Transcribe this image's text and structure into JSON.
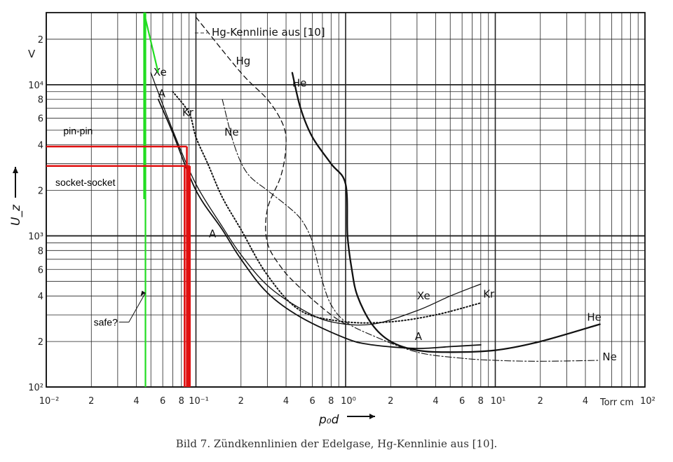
{
  "caption": "Bild 7. Zündkennlinien der Edelgase, Hg-Kennlinie aus [10].",
  "chart_data": {
    "type": "line",
    "xscale": "log",
    "yscale": "log",
    "xlim": [
      0.01,
      100
    ],
    "ylim": [
      100,
      30000
    ],
    "xlabel": "p₀d",
    "xunit": "Torr cm",
    "ylabel": "U_z",
    "yunit": "V",
    "grid": true,
    "header_label": "Hg-Kennlinie aus [10]",
    "x_ticks": [
      {
        "v": 0.01,
        "t": "10⁻²"
      },
      {
        "v": 0.02,
        "t": "2"
      },
      {
        "v": 0.04,
        "t": "4"
      },
      {
        "v": 0.06,
        "t": "6"
      },
      {
        "v": 0.08,
        "t": "8"
      },
      {
        "v": 0.1,
        "t": "10⁻¹"
      },
      {
        "v": 0.2,
        "t": "2"
      },
      {
        "v": 0.4,
        "t": "4"
      },
      {
        "v": 0.6,
        "t": "6"
      },
      {
        "v": 0.8,
        "t": "8"
      },
      {
        "v": 1,
        "t": "10⁰"
      },
      {
        "v": 2,
        "t": "2"
      },
      {
        "v": 4,
        "t": "4"
      },
      {
        "v": 6,
        "t": "6"
      },
      {
        "v": 8,
        "t": "8"
      },
      {
        "v": 10,
        "t": "10¹"
      },
      {
        "v": 20,
        "t": "2"
      },
      {
        "v": 40,
        "t": "4"
      },
      {
        "v": 100,
        "t": "10²"
      }
    ],
    "y_ticks": [
      {
        "v": 100,
        "t": "10²"
      },
      {
        "v": 200,
        "t": "2"
      },
      {
        "v": 400,
        "t": "4"
      },
      {
        "v": 600,
        "t": "6"
      },
      {
        "v": 800,
        "t": "8"
      },
      {
        "v": 1000,
        "t": "10³"
      },
      {
        "v": 2000,
        "t": "2"
      },
      {
        "v": 4000,
        "t": "4"
      },
      {
        "v": 6000,
        "t": "6"
      },
      {
        "v": 8000,
        "t": "8"
      },
      {
        "v": 10000,
        "t": "10⁴"
      },
      {
        "v": 20000,
        "t": "2"
      }
    ],
    "series": [
      {
        "name": "Xe",
        "style": "solid",
        "width": 1.3,
        "label_x": 0.052,
        "label_y": 11500,
        "label2_x": 3.0,
        "label2_y": 380,
        "points": [
          [
            0.05,
            12000
          ],
          [
            0.07,
            5000
          ],
          [
            0.1,
            2200
          ],
          [
            0.15,
            1150
          ],
          [
            0.2,
            750
          ],
          [
            0.3,
            470
          ],
          [
            0.5,
            330
          ],
          [
            0.8,
            270
          ],
          [
            1.5,
            260
          ],
          [
            3,
            320
          ],
          [
            5,
            400
          ],
          [
            8,
            480
          ]
        ]
      },
      {
        "name": "A",
        "style": "solid",
        "width": 1.8,
        "label_x": 0.056,
        "label_y": 8300,
        "label2_x": 0.122,
        "label2_y": 980,
        "label3_x": 2.9,
        "label3_y": 205,
        "points": [
          [
            0.056,
            8000
          ],
          [
            0.07,
            4800
          ],
          [
            0.1,
            2000
          ],
          [
            0.15,
            1100
          ],
          [
            0.2,
            700
          ],
          [
            0.3,
            420
          ],
          [
            0.5,
            290
          ],
          [
            1,
            210
          ],
          [
            1.5,
            190
          ],
          [
            3,
            180
          ],
          [
            5,
            185
          ],
          [
            8,
            190
          ]
        ]
      },
      {
        "name": "Kr",
        "style": "dotted",
        "width": 2.0,
        "label_x": 0.081,
        "label_y": 6200,
        "label2_x": 8.3,
        "label2_y": 390,
        "points": [
          [
            0.07,
            9000
          ],
          [
            0.09,
            6500
          ],
          [
            0.1,
            4500
          ],
          [
            0.12,
            3000
          ],
          [
            0.15,
            1800
          ],
          [
            0.2,
            1100
          ],
          [
            0.3,
            550
          ],
          [
            0.5,
            320
          ],
          [
            1,
            270
          ],
          [
            2,
            270
          ],
          [
            4,
            300
          ],
          [
            8,
            360
          ]
        ]
      },
      {
        "name": "Ne",
        "style": "dashdot",
        "width": 1.1,
        "label_x": 0.155,
        "label_y": 4600,
        "label2_x": 52,
        "label2_y": 150,
        "points": [
          [
            0.15,
            8000
          ],
          [
            0.18,
            4000
          ],
          [
            0.22,
            2600
          ],
          [
            0.3,
            2000
          ],
          [
            0.4,
            1600
          ],
          [
            0.5,
            1300
          ],
          [
            0.58,
            1000
          ],
          [
            0.62,
            800
          ],
          [
            0.7,
            500
          ],
          [
            0.8,
            350
          ],
          [
            1,
            270
          ],
          [
            1.5,
            220
          ],
          [
            3,
            170
          ],
          [
            6,
            155
          ],
          [
            10,
            150
          ],
          [
            20,
            148
          ],
          [
            50,
            150
          ]
        ]
      },
      {
        "name": "He",
        "style": "solid",
        "width": 2.3,
        "label_x": 0.44,
        "label_y": 9700,
        "label2_x": 41,
        "label2_y": 275,
        "points": [
          [
            0.44,
            12000
          ],
          [
            0.5,
            7000
          ],
          [
            0.6,
            4500
          ],
          [
            0.8,
            3000
          ],
          [
            1.0,
            2200
          ],
          [
            1.03,
            1000
          ],
          [
            1.1,
            600
          ],
          [
            1.2,
            400
          ],
          [
            1.5,
            260
          ],
          [
            2,
            200
          ],
          [
            3,
            175
          ],
          [
            5,
            170
          ],
          [
            10,
            175
          ],
          [
            20,
            200
          ],
          [
            50,
            260
          ]
        ]
      },
      {
        "name": "Hg",
        "style": "dashed",
        "width": 1.3,
        "label_x": 0.185,
        "label_y": 13600,
        "points": [
          [
            0.1,
            28000
          ],
          [
            0.2,
            12000
          ],
          [
            0.3,
            8000
          ],
          [
            0.38,
            5500
          ],
          [
            0.4,
            4000
          ],
          [
            0.37,
            2500
          ],
          [
            0.3,
            1500
          ],
          [
            0.3,
            900
          ],
          [
            0.38,
            600
          ],
          [
            0.5,
            450
          ],
          [
            0.6,
            380
          ],
          [
            0.8,
            300
          ],
          [
            1.0,
            260
          ]
        ]
      }
    ],
    "overlay": {
      "green_x": 0.046,
      "green_y_top": 30000,
      "green_y_break": 1750,
      "green_line_x2": 0.045,
      "green_diag_to": [
        0.056,
        12000
      ],
      "red": [
        {
          "label": "pin-pin",
          "level": 3900,
          "x": [
            0.087
          ],
          "label_x": 0.013,
          "label_y": 4700
        },
        {
          "label": "socket-socket",
          "level": 2900,
          "x": [
            0.084,
            0.091
          ],
          "label_x": 0.0115,
          "label_y": 2150
        }
      ],
      "safe_label": "safe?",
      "safe_point": [
        0.046,
        420
      ],
      "safe_label_at": [
        0.03,
        255
      ]
    }
  }
}
